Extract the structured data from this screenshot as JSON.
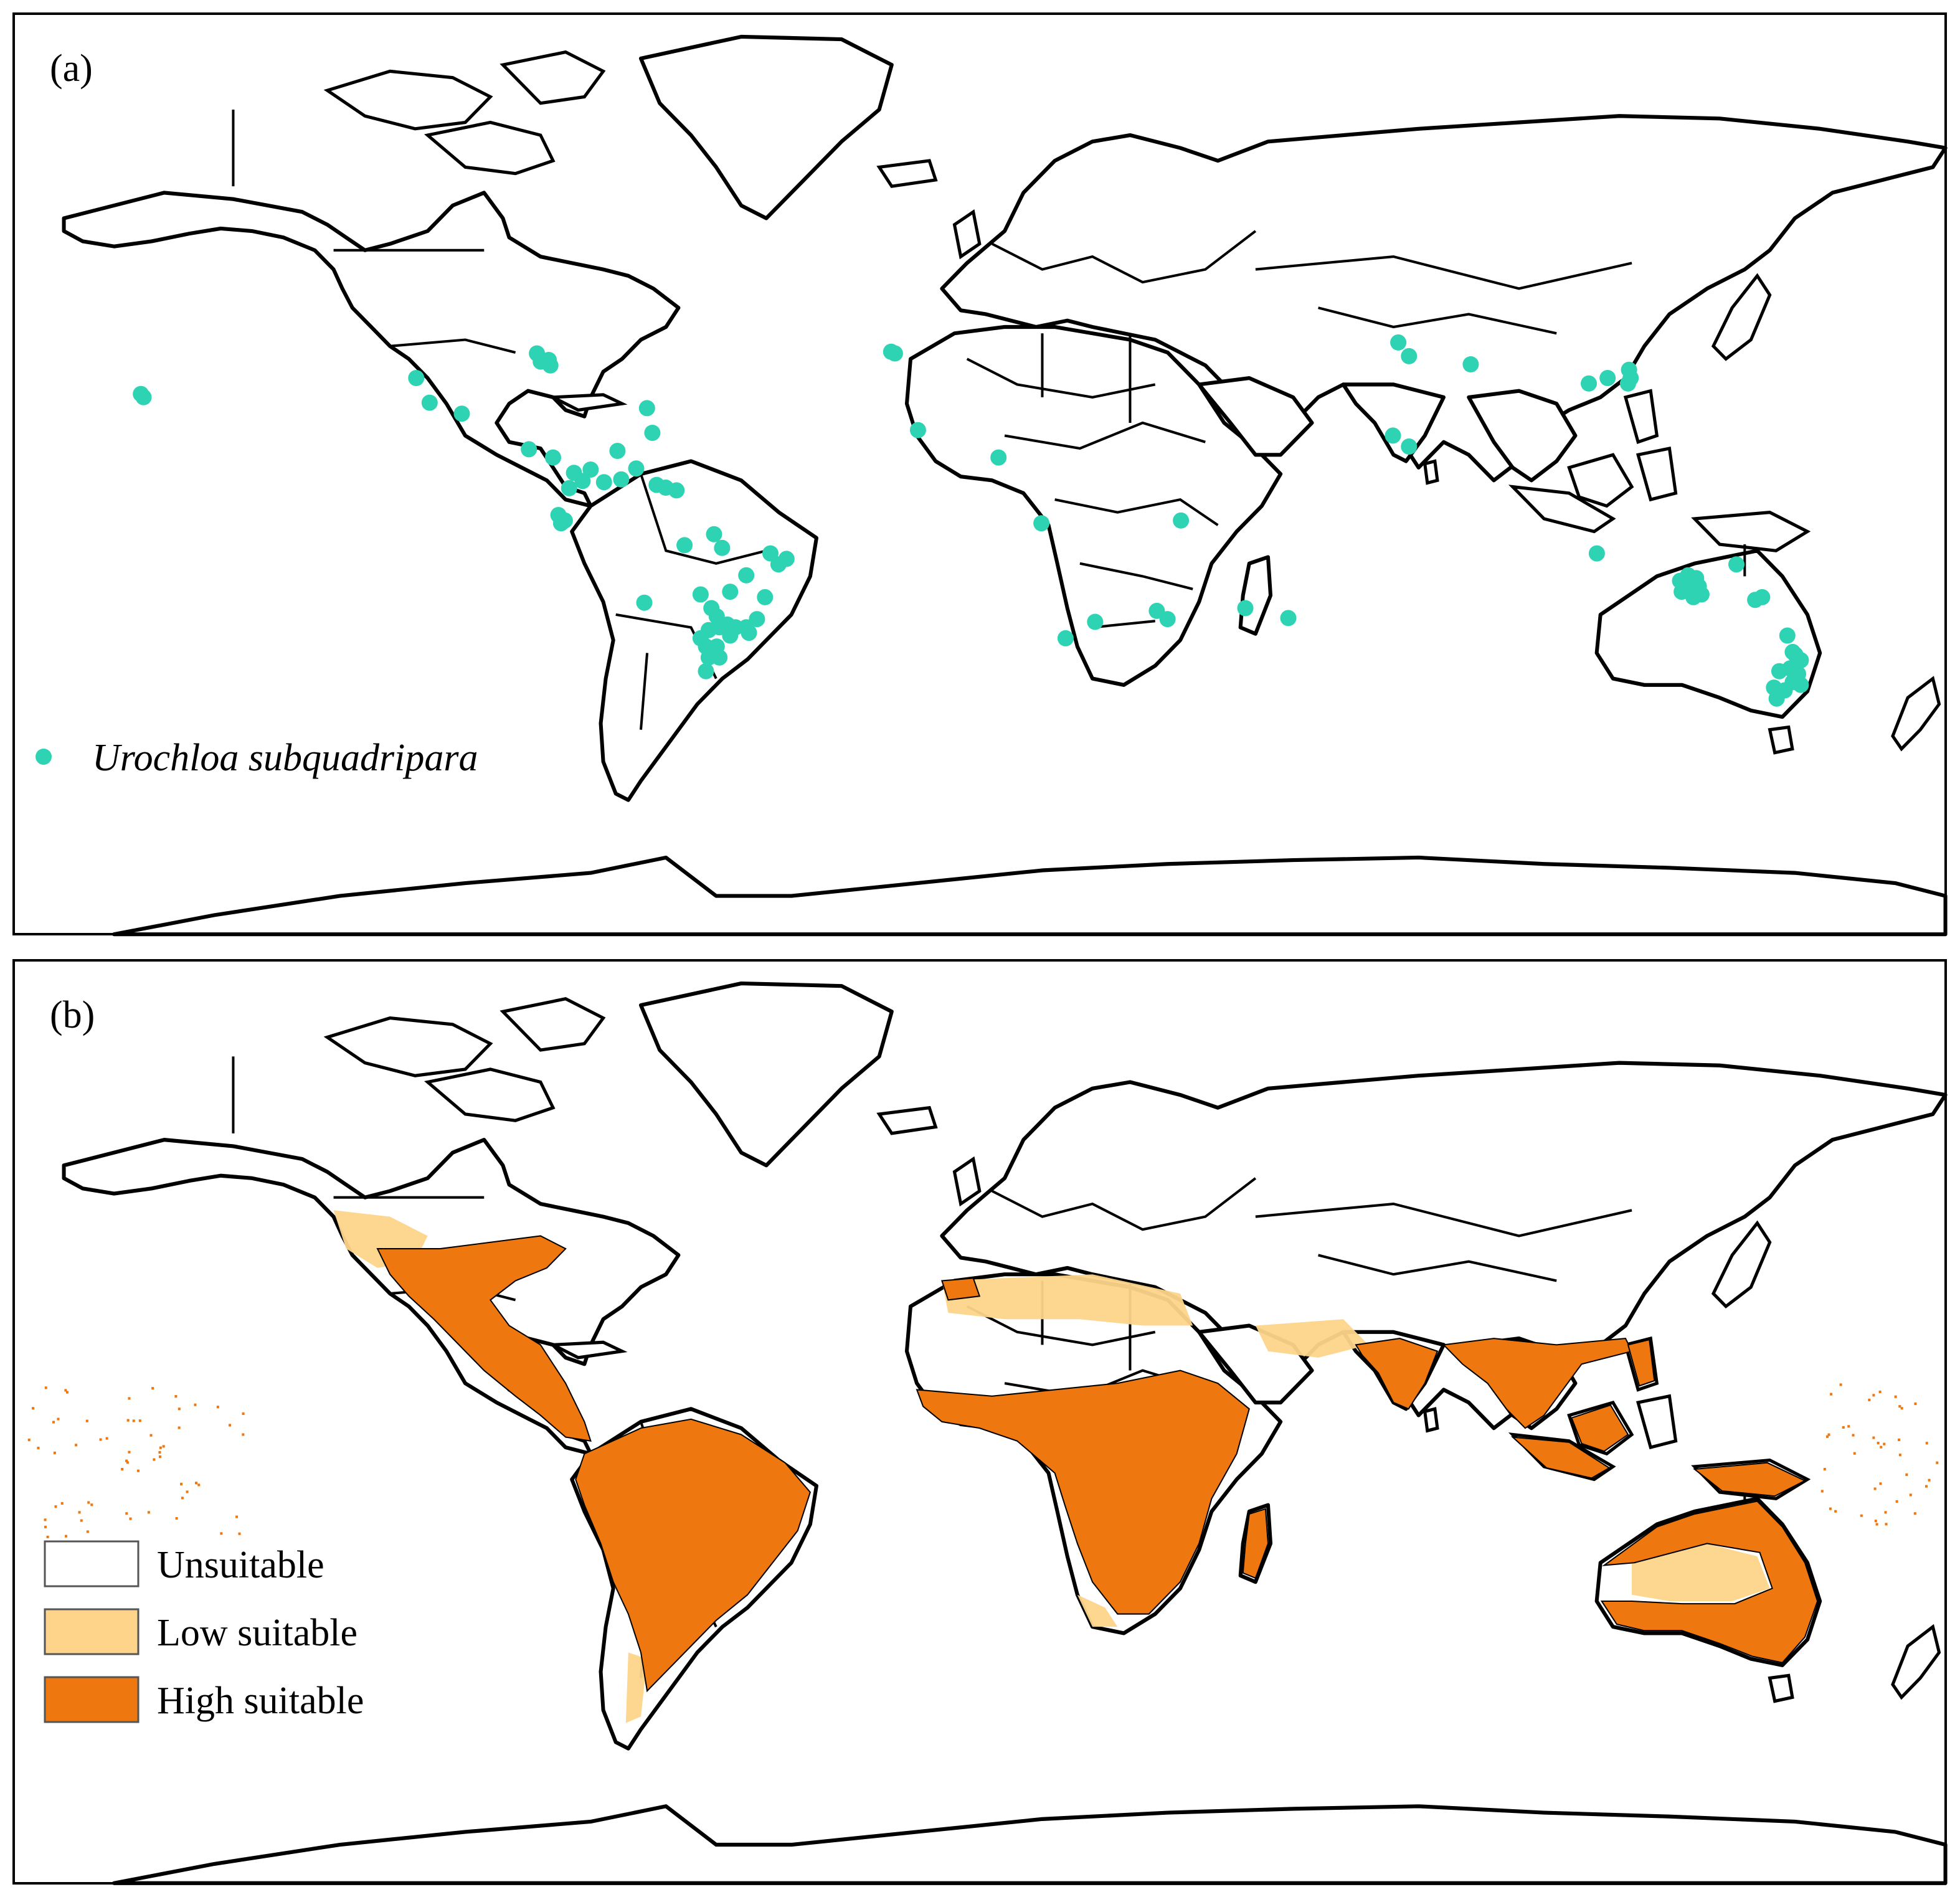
{
  "panels": [
    {
      "label": "(a)",
      "legend": {
        "species_name": "Urochloa subquadripara"
      }
    },
    {
      "label": "(b)",
      "legend": {
        "items": [
          {
            "label": "Unsuitable",
            "color": "#ffffff"
          },
          {
            "label": "Low suitable",
            "color": "#fdd48a"
          },
          {
            "label": "High suitable",
            "color": "#ee770f"
          }
        ]
      }
    }
  ],
  "colors": {
    "occurrence_point": "#2ed3b4",
    "unsuitable": "#ffffff",
    "low_suitable": "#fdd48a",
    "high_suitable": "#ee770f"
  },
  "occurrence_points": [
    [
      -155.8,
      20.0
    ],
    [
      -156.3,
      20.6
    ],
    [
      -105.0,
      23.5
    ],
    [
      -102.5,
      19.0
    ],
    [
      -96.5,
      17.0
    ],
    [
      -82.5,
      28.0
    ],
    [
      -81.8,
      26.5
    ],
    [
      -80.3,
      26.8
    ],
    [
      -80.0,
      25.8
    ],
    [
      -84.0,
      10.5
    ],
    [
      -79.5,
      9.0
    ],
    [
      -75.6,
      6.2
    ],
    [
      -74.0,
      4.7
    ],
    [
      -76.5,
      3.4
    ],
    [
      -72.5,
      6.8
    ],
    [
      -70.0,
      4.5
    ],
    [
      -67.5,
      10.2
    ],
    [
      -66.8,
      5.0
    ],
    [
      -64.0,
      7.0
    ],
    [
      -62.0,
      18.0
    ],
    [
      -61.0,
      13.5
    ],
    [
      -60.2,
      4.0
    ],
    [
      -58.5,
      3.5
    ],
    [
      -56.5,
      3.0
    ],
    [
      -78.5,
      -1.5
    ],
    [
      -78.0,
      -3.0
    ],
    [
      -77.3,
      -2.5
    ],
    [
      -55.0,
      -7.0
    ],
    [
      -49.5,
      -5.0
    ],
    [
      -48.0,
      -7.5
    ],
    [
      -39.0,
      -8.5
    ],
    [
      -36.0,
      -9.5
    ],
    [
      -37.5,
      -10.5
    ],
    [
      -43.5,
      -12.5
    ],
    [
      -46.5,
      -15.5
    ],
    [
      -52.0,
      -16.0
    ],
    [
      -50.0,
      -18.5
    ],
    [
      -49.0,
      -20.0
    ],
    [
      -47.0,
      -21.5
    ],
    [
      -45.5,
      -22.0
    ],
    [
      -43.5,
      -22.0
    ],
    [
      -41.5,
      -20.5
    ],
    [
      -43.0,
      -23.0
    ],
    [
      -46.5,
      -23.5
    ],
    [
      -48.5,
      -22.0
    ],
    [
      -50.5,
      -22.5
    ],
    [
      -52.0,
      -24.0
    ],
    [
      -51.0,
      -25.5
    ],
    [
      -49.0,
      -25.5
    ],
    [
      -50.5,
      -27.5
    ],
    [
      -48.5,
      -27.5
    ],
    [
      -51.0,
      -30.0
    ],
    [
      -62.5,
      -17.5
    ],
    [
      -40.0,
      -16.5
    ],
    [
      -16.5,
      28.3
    ],
    [
      -15.8,
      28.0
    ],
    [
      -11.5,
      14.0
    ],
    [
      3.5,
      9.0
    ],
    [
      11.5,
      -3.0
    ],
    [
      37.5,
      -2.5
    ],
    [
      49.5,
      -18.5
    ],
    [
      57.5,
      -20.3
    ],
    [
      33.0,
      -19.0
    ],
    [
      35.0,
      -20.5
    ],
    [
      21.5,
      -21.0
    ],
    [
      16.0,
      -24.0
    ],
    [
      78.0,
      30.0
    ],
    [
      80.0,
      27.5
    ],
    [
      77.0,
      13.0
    ],
    [
      80.0,
      11.0
    ],
    [
      91.5,
      26.0
    ],
    [
      113.5,
      22.5
    ],
    [
      117.0,
      23.5
    ],
    [
      121.0,
      25.0
    ],
    [
      121.3,
      23.5
    ],
    [
      120.8,
      22.5
    ],
    [
      115.0,
      -8.5
    ],
    [
      132.0,
      -12.5
    ],
    [
      133.5,
      -13.0
    ],
    [
      131.5,
      -14.0
    ],
    [
      134.0,
      -14.5
    ],
    [
      130.5,
      -13.5
    ],
    [
      132.5,
      -15.0
    ],
    [
      134.5,
      -16.0
    ],
    [
      130.8,
      -15.5
    ],
    [
      133.0,
      -16.5
    ],
    [
      141.0,
      -10.5
    ],
    [
      145.8,
      -16.5
    ],
    [
      144.5,
      -17.0
    ],
    [
      150.5,
      -23.5
    ],
    [
      152.0,
      -27.0
    ],
    [
      153.0,
      -28.0
    ],
    [
      151.0,
      -29.5
    ],
    [
      152.5,
      -30.5
    ],
    [
      151.5,
      -32.0
    ],
    [
      150.0,
      -33.5
    ],
    [
      153.0,
      -32.5
    ],
    [
      148.0,
      -33.0
    ],
    [
      149.0,
      -30.0
    ],
    [
      151.5,
      -26.5
    ],
    [
      148.5,
      -35.0
    ]
  ]
}
